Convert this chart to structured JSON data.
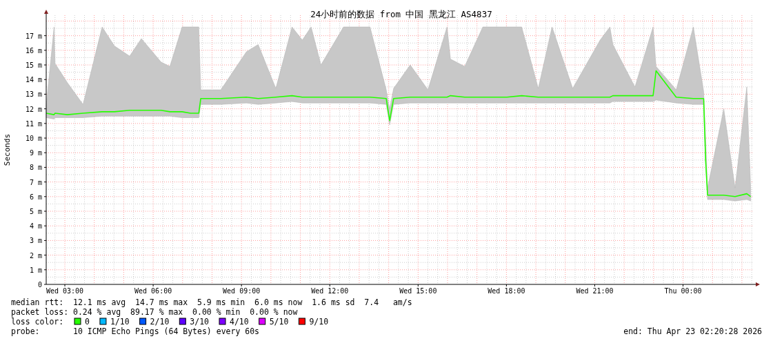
{
  "chart_data": {
    "type": "line",
    "title": "24小时前的数据 from 中国 黑龙江 AS4837",
    "ylabel": "Seconds",
    "x": [
      "2026-04-22T02:22",
      "2026-04-22T02:38",
      "2026-04-22T02:40",
      "2026-04-22T03:05",
      "2026-04-22T03:37",
      "2026-04-22T04:16",
      "2026-04-22T04:41",
      "2026-04-22T05:12",
      "2026-04-22T05:36",
      "2026-04-22T06:16",
      "2026-04-22T06:34",
      "2026-04-22T06:59",
      "2026-04-22T07:16",
      "2026-04-22T07:33",
      "2026-04-22T07:37",
      "2026-04-22T08:18",
      "2026-04-22T09:10",
      "2026-04-22T09:34",
      "2026-04-22T10:10",
      "2026-04-22T10:43",
      "2026-04-22T11:04",
      "2026-04-22T11:22",
      "2026-04-22T11:42",
      "2026-04-22T12:28",
      "2026-04-22T13:22",
      "2026-04-22T13:55",
      "2026-04-22T14:02",
      "2026-04-22T14:10",
      "2026-04-22T14:44",
      "2026-04-22T15:20",
      "2026-04-22T15:59",
      "2026-04-22T16:06",
      "2026-04-22T16:35",
      "2026-04-22T17:12",
      "2026-04-22T17:40",
      "2026-04-22T18:01",
      "2026-04-22T18:31",
      "2026-04-22T19:05",
      "2026-04-22T19:33",
      "2026-04-22T20:15",
      "2026-04-22T21:11",
      "2026-04-22T21:31",
      "2026-04-22T21:37",
      "2026-04-22T22:22",
      "2026-04-22T22:59",
      "2026-04-22T23:05",
      "2026-04-22T23:46",
      "2026-04-23T00:21",
      "2026-04-23T00:42",
      "2026-04-23T00:46",
      "2026-04-23T00:50",
      "2026-04-23T01:23",
      "2026-04-23T01:46",
      "2026-04-23T02:10",
      "2026-04-23T02:18"
    ],
    "xlim": [
      "2026-04-22T02:22",
      "2026-04-23T02:24"
    ],
    "xticks": [
      {
        "value": "2026-04-22T03:00",
        "label": "Wed 03:00"
      },
      {
        "value": "2026-04-22T06:00",
        "label": "Wed 06:00"
      },
      {
        "value": "2026-04-22T09:00",
        "label": "Wed 09:00"
      },
      {
        "value": "2026-04-22T12:00",
        "label": "Wed 12:00"
      },
      {
        "value": "2026-04-22T15:00",
        "label": "Wed 15:00"
      },
      {
        "value": "2026-04-22T18:00",
        "label": "Wed 18:00"
      },
      {
        "value": "2026-04-22T21:00",
        "label": "Wed 21:00"
      },
      {
        "value": "2026-04-23T00:00",
        "label": "Thu 00:00"
      }
    ],
    "ylim": [
      0,
      18.4
    ],
    "yticks": [
      0,
      {
        "value": 1,
        "label": "1 m"
      },
      {
        "value": 2,
        "label": "2 m"
      },
      {
        "value": 3,
        "label": "3 m"
      },
      {
        "value": 4,
        "label": "4 m"
      },
      {
        "value": 5,
        "label": "5 m"
      },
      {
        "value": 6,
        "label": "6 m"
      },
      {
        "value": 7,
        "label": "7 m"
      },
      {
        "value": 8,
        "label": "8 m"
      },
      {
        "value": 9,
        "label": "9 m"
      },
      {
        "value": 10,
        "label": "10 m"
      },
      {
        "value": 11,
        "label": "11 m"
      },
      {
        "value": 12,
        "label": "12 m"
      },
      {
        "value": 13,
        "label": "13 m"
      },
      {
        "value": 14,
        "label": "14 m"
      },
      {
        "value": 15,
        "label": "15 m"
      },
      {
        "value": 16,
        "label": "16 m"
      },
      {
        "value": 17,
        "label": "17 m"
      }
    ],
    "grid": true,
    "legend": "bottom",
    "legend_title": "loss color:",
    "series": [
      {
        "name": "0",
        "color": "#26ff00",
        "values": [
          11.7,
          11.6,
          11.7,
          11.6,
          11.7,
          11.8,
          11.8,
          11.9,
          11.9,
          11.9,
          11.8,
          11.8,
          11.7,
          11.7,
          12.7,
          12.7,
          12.8,
          12.7,
          12.8,
          12.9,
          12.8,
          12.8,
          12.8,
          12.8,
          12.8,
          12.7,
          11.2,
          12.7,
          12.8,
          12.8,
          12.8,
          12.9,
          12.8,
          12.8,
          12.8,
          12.8,
          12.9,
          12.8,
          12.8,
          12.8,
          12.8,
          12.8,
          12.9,
          12.9,
          12.9,
          14.6,
          12.8,
          12.7,
          12.7,
          8.5,
          6.1,
          6.1,
          6.0,
          6.2,
          6.0
        ],
        "lower": [
          11.4,
          11.3,
          11.4,
          11.4,
          11.4,
          11.5,
          11.5,
          11.5,
          11.5,
          11.5,
          11.5,
          11.4,
          11.4,
          11.4,
          12.3,
          12.3,
          12.4,
          12.3,
          12.4,
          12.5,
          12.4,
          12.4,
          12.4,
          12.4,
          12.4,
          12.3,
          10.9,
          12.3,
          12.4,
          12.4,
          12.4,
          12.4,
          12.4,
          12.4,
          12.4,
          12.4,
          12.4,
          12.4,
          12.4,
          12.4,
          12.4,
          12.4,
          12.5,
          12.5,
          12.5,
          12.6,
          12.4,
          12.3,
          12.3,
          8.2,
          5.8,
          5.8,
          5.7,
          5.8,
          5.7
        ],
        "upper": [
          12.2,
          17.6,
          15.1,
          13.8,
          12.3,
          17.6,
          16.3,
          15.6,
          16.8,
          15.2,
          14.9,
          17.6,
          17.6,
          17.6,
          13.3,
          13.3,
          15.9,
          16.4,
          13.4,
          17.6,
          16.7,
          17.6,
          15.0,
          17.6,
          17.6,
          13.3,
          12.0,
          13.4,
          15.0,
          13.3,
          17.6,
          15.4,
          14.9,
          17.6,
          17.6,
          17.6,
          17.6,
          13.4,
          17.6,
          13.4,
          16.7,
          17.6,
          16.4,
          13.5,
          17.6,
          14.9,
          13.3,
          17.6,
          13.2,
          10.0,
          6.6,
          12.0,
          6.6,
          13.5,
          6.5
        ]
      },
      {
        "name": "1/10",
        "color": "#00b8ff",
        "values": [
          null,
          null,
          null,
          null,
          null,
          null,
          null,
          null,
          null,
          null,
          null,
          null,
          null,
          null,
          null,
          null,
          null,
          null,
          null,
          null,
          null,
          null,
          null,
          null,
          null,
          null,
          null,
          null,
          null,
          null,
          null,
          null,
          null,
          null,
          null,
          null,
          null,
          null,
          null,
          null,
          null,
          null,
          null,
          null,
          null,
          null,
          null,
          null,
          null,
          null,
          null,
          null,
          null,
          null,
          null
        ]
      },
      {
        "name": "2/10",
        "color": "#0059ff",
        "values": [
          null,
          null,
          null,
          null,
          null,
          null,
          null,
          null,
          null,
          null,
          null,
          null,
          null,
          null,
          null,
          null,
          null,
          null,
          null,
          null,
          null,
          null,
          null,
          null,
          null,
          null,
          null,
          null,
          null,
          null,
          null,
          null,
          null,
          null,
          null,
          null,
          null,
          null,
          null,
          null,
          null,
          null,
          null,
          null,
          null,
          null,
          null,
          null,
          null,
          null,
          null,
          null,
          null,
          null,
          null
        ]
      },
      {
        "name": "3/10",
        "color": "#5e00ff",
        "values": [
          null,
          null,
          null,
          null,
          null,
          null,
          null,
          null,
          null,
          null,
          null,
          null,
          null,
          null,
          null,
          null,
          null,
          null,
          null,
          null,
          null,
          null,
          null,
          null,
          null,
          null,
          null,
          null,
          null,
          null,
          null,
          null,
          null,
          null,
          null,
          null,
          null,
          null,
          null,
          null,
          null,
          null,
          null,
          null,
          null,
          null,
          null,
          null,
          null,
          null,
          null,
          null,
          null,
          null,
          null
        ]
      },
      {
        "name": "4/10",
        "color": "#7e00ff",
        "values": [
          null,
          null,
          null,
          null,
          null,
          null,
          null,
          null,
          null,
          null,
          null,
          null,
          null,
          null,
          null,
          null,
          null,
          null,
          null,
          null,
          null,
          null,
          null,
          null,
          null,
          null,
          null,
          null,
          null,
          null,
          null,
          null,
          null,
          null,
          null,
          null,
          null,
          null,
          null,
          null,
          null,
          null,
          null,
          null,
          null,
          null,
          null,
          null,
          null,
          null,
          null,
          null,
          null,
          null,
          null
        ]
      },
      {
        "name": "5/10",
        "color": "#dd00ff",
        "values": [
          null,
          null,
          null,
          null,
          null,
          null,
          null,
          null,
          null,
          null,
          null,
          null,
          null,
          null,
          null,
          null,
          null,
          null,
          null,
          null,
          null,
          null,
          null,
          null,
          null,
          null,
          null,
          null,
          null,
          null,
          null,
          null,
          null,
          null,
          null,
          null,
          null,
          null,
          null,
          null,
          null,
          null,
          null,
          null,
          null,
          null,
          null,
          null,
          null,
          null,
          null,
          null,
          null,
          null,
          null
        ]
      },
      {
        "name": "9/10",
        "color": "#ff0000",
        "values": [
          null,
          null,
          null,
          null,
          null,
          null,
          null,
          null,
          null,
          null,
          null,
          null,
          null,
          null,
          null,
          null,
          null,
          null,
          null,
          null,
          null,
          null,
          null,
          null,
          null,
          null,
          null,
          null,
          null,
          null,
          null,
          null,
          null,
          null,
          null,
          null,
          null,
          null,
          null,
          null,
          null,
          null,
          null,
          null,
          null,
          null,
          null,
          null,
          null,
          null,
          null,
          null,
          null,
          null,
          null
        ]
      }
    ],
    "annotations": [
      "median rtt:  12.1 ms avg  14.7 ms max  5.9 ms min  6.0 ms now  1.6 ms sd  7.4   am/s",
      "packet loss: 0.24 % avg  89.17 % max  0.00 % min  0.00 % now",
      "probe:       10 ICMP Echo Pings (64 Bytes) every 60s",
      "end: Thu Apr 23 02:20:28 2026"
    ]
  }
}
